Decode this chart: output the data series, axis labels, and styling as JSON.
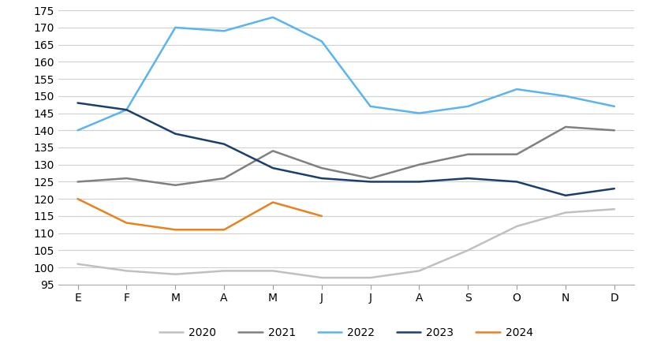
{
  "months": [
    "E",
    "F",
    "M",
    "A",
    "M",
    "J",
    "J",
    "A",
    "S",
    "O",
    "N",
    "D"
  ],
  "series": {
    "2020": [
      101,
      99,
      98,
      99,
      99,
      97,
      97,
      99,
      105,
      112,
      116,
      117
    ],
    "2021": [
      125,
      126,
      124,
      126,
      134,
      129,
      126,
      130,
      133,
      133,
      141,
      140
    ],
    "2022": [
      140,
      146,
      170,
      169,
      173,
      166,
      147,
      145,
      147,
      152,
      150,
      147
    ],
    "2023": [
      148,
      146,
      139,
      136,
      129,
      126,
      125,
      125,
      126,
      125,
      121,
      123
    ],
    "2024": [
      120,
      113,
      111,
      111,
      119,
      115,
      null,
      null,
      null,
      null,
      null,
      null
    ]
  },
  "colors": {
    "2020": "#c0c0c0",
    "2021": "#808080",
    "2022": "#5ab4f0",
    "2023": "#1a3f6f",
    "2024": "#e8821e"
  },
  "ylim": [
    95,
    175
  ],
  "yticks": [
    95,
    100,
    105,
    110,
    115,
    120,
    125,
    130,
    135,
    140,
    145,
    150,
    155,
    160,
    165,
    170,
    175
  ],
  "background_color": "#ffffff",
  "grid_color": "#d0d0d0",
  "linewidth": 1.8,
  "figsize": [
    8.2,
    4.4
  ],
  "dpi": 100
}
